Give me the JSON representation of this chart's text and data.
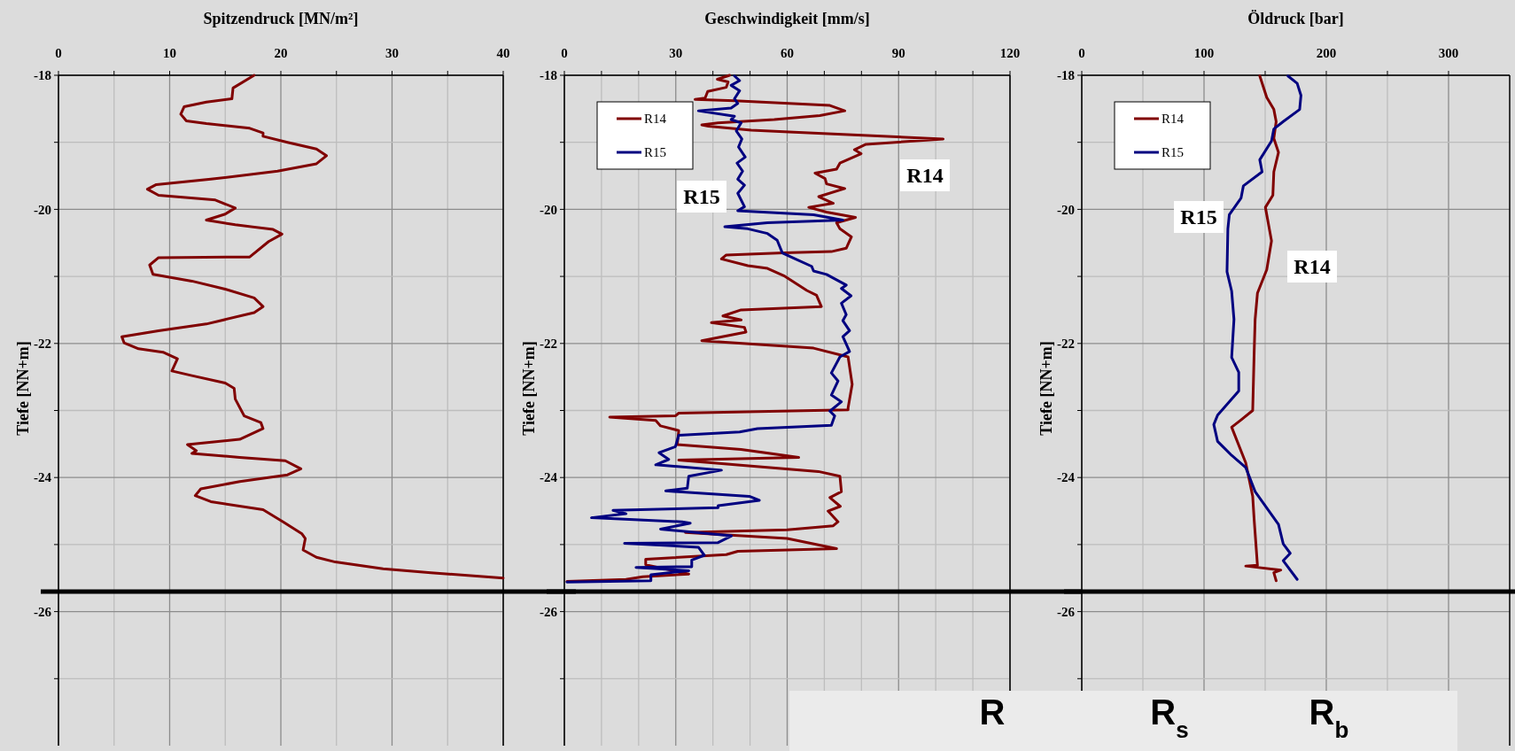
{
  "chart_data": [
    {
      "type": "line",
      "title": "Spitzendruck [MN/m²]",
      "ylabel": "Tiefe [NN+m]",
      "xlim": [
        0,
        40
      ],
      "xticks": [
        0,
        {
          "value": 5,
          "label": null
        },
        10,
        {
          "value": 15,
          "label": null
        },
        20,
        {
          "value": 25,
          "label": null
        },
        30,
        {
          "value": 35,
          "label": null
        },
        40
      ],
      "ylim": [
        -28,
        -18
      ],
      "yticks": [
        -18,
        {
          "value": -19,
          "label": null
        },
        -20,
        {
          "value": -21,
          "label": null
        },
        -22,
        {
          "value": -23,
          "label": null
        },
        -24,
        {
          "value": -25,
          "label": null
        },
        -26,
        {
          "value": -27,
          "label": null
        }
      ],
      "grid": true,
      "ref_lines": [
        {
          "axis": "y",
          "value": -25.7,
          "color": "#000000"
        }
      ],
      "series": [
        {
          "color": "#800000",
          "x": [
            17.6,
            15.7,
            15.6,
            13.3,
            11.3,
            11.0,
            11.5,
            13.3,
            17.2,
            18.4,
            18.4,
            20.6,
            23.2,
            24.1,
            23.2,
            19.7,
            13.7,
            8.8,
            8.0,
            9.0,
            14.1,
            15.9,
            15.0,
            13.3,
            15.9,
            19.3,
            20.1,
            18.9,
            17.2,
            9.0,
            8.2,
            8.5,
            12.0,
            15.0,
            17.6,
            18.4,
            17.6,
            13.3,
            9.0,
            5.7,
            5.9,
            7.2,
            9.4,
            10.7,
            10.2,
            12.0,
            15.0,
            15.8,
            15.9,
            16.7,
            18.2,
            18.4,
            16.3,
            11.6,
            12.4,
            12.0,
            16.3,
            20.4,
            21.8,
            20.6,
            16.3,
            12.8,
            12.3,
            13.7,
            18.4,
            20.2,
            21.9,
            22.2,
            22.0,
            23.2,
            24.9,
            29.2,
            33.5,
            40.0
          ],
          "values": [
            -18.0,
            -18.19,
            -18.35,
            -18.4,
            -18.47,
            -18.58,
            -18.68,
            -18.72,
            -18.79,
            -18.86,
            -18.91,
            -19.0,
            -19.1,
            -19.2,
            -19.32,
            -19.43,
            -19.55,
            -19.63,
            -19.7,
            -19.79,
            -19.86,
            -19.98,
            -20.07,
            -20.16,
            -20.23,
            -20.3,
            -20.37,
            -20.48,
            -20.71,
            -20.72,
            -20.83,
            -20.97,
            -21.07,
            -21.19,
            -21.32,
            -21.45,
            -21.54,
            -21.71,
            -21.81,
            -21.9,
            -21.99,
            -22.08,
            -22.13,
            -22.23,
            -22.41,
            -22.48,
            -22.59,
            -22.67,
            -22.83,
            -23.08,
            -23.18,
            -23.27,
            -23.43,
            -23.51,
            -23.6,
            -23.64,
            -23.7,
            -23.75,
            -23.87,
            -23.96,
            -24.06,
            -24.17,
            -24.27,
            -24.36,
            -24.48,
            -24.66,
            -24.84,
            -24.91,
            -25.08,
            -25.19,
            -25.26,
            -25.36,
            -25.42,
            -25.5
          ]
        }
      ]
    },
    {
      "type": "line",
      "title": "Geschwindigkeit [mm/s]",
      "ylabel": "Tiefe [NN+m]",
      "xlim": [
        0,
        120
      ],
      "xticks": [
        0,
        {
          "value": 10,
          "label": null
        },
        {
          "value": 20,
          "label": null
        },
        30,
        {
          "value": 40,
          "label": null
        },
        {
          "value": 50,
          "label": null
        },
        60,
        {
          "value": 70,
          "label": null
        },
        {
          "value": 80,
          "label": null
        },
        90,
        {
          "value": 100,
          "label": null
        },
        {
          "value": 110,
          "label": null
        },
        120
      ],
      "ylim": [
        -28,
        -18
      ],
      "yticks": [
        -18,
        {
          "value": -19,
          "label": null
        },
        -20,
        {
          "value": -21,
          "label": null
        },
        -22,
        {
          "value": -23,
          "label": null
        },
        -24,
        {
          "value": -25,
          "label": null
        },
        -26,
        {
          "value": -27,
          "label": null
        }
      ],
      "grid": true,
      "legend": "top left",
      "ref_lines": [
        {
          "axis": "y",
          "value": -25.7,
          "color": "#000000"
        }
      ],
      "annotations": [
        "R15",
        "R14"
      ],
      "series": [
        {
          "name": "R14",
          "color": "#800000",
          "x": [
            44.5,
            41.2,
            44.1,
            43.6,
            38.6,
            37.9,
            35.2,
            45.8,
            71.5,
            75.5,
            68.8,
            56.5,
            41.4,
            37.0,
            38.8,
            50.3,
            61.8,
            102.0,
            81.2,
            78.1,
            79.9,
            74.2,
            73.3,
            67.5,
            70.2,
            70.6,
            75.5,
            68.5,
            72.4,
            65.8,
            70.6,
            78.4,
            73.3,
            74.2,
            77.3,
            75.9,
            71.9,
            59.1,
            43.6,
            42.3,
            49.4,
            54.7,
            59.1,
            65.3,
            67.9,
            69.2,
            47.6,
            42.7,
            47.6,
            39.6,
            48.5,
            48.9,
            37.0,
            67.1,
            76.4,
            77.5,
            76.4,
            76.4,
            30.8,
            29.9,
            12.2,
            24.6,
            25.9,
            30.8,
            30.4,
            47.6,
            63.1,
            30.8,
            68.4,
            74.2,
            74.6,
            71.5,
            74.3,
            71.0,
            73.7,
            72.4,
            60.0,
            32.6,
            60.0,
            73.3,
            46.7,
            43.6,
            21.9,
            21.9,
            33.5,
            21.1,
            16.6,
            0.7
          ],
          "values": [
            -18.0,
            -18.06,
            -18.1,
            -18.18,
            -18.24,
            -18.34,
            -18.36,
            -18.38,
            -18.45,
            -18.53,
            -18.6,
            -18.66,
            -18.71,
            -18.74,
            -18.76,
            -18.82,
            -18.85,
            -18.95,
            -19.03,
            -19.11,
            -19.17,
            -19.31,
            -19.4,
            -19.46,
            -19.54,
            -19.62,
            -19.69,
            -19.81,
            -19.91,
            -19.97,
            -20.04,
            -20.12,
            -20.2,
            -20.29,
            -20.41,
            -20.58,
            -20.63,
            -20.65,
            -20.68,
            -20.74,
            -20.84,
            -20.88,
            -20.99,
            -21.21,
            -21.28,
            -21.45,
            -21.5,
            -21.59,
            -21.65,
            -21.69,
            -21.76,
            -21.83,
            -21.96,
            -22.07,
            -22.2,
            -22.61,
            -22.96,
            -22.99,
            -23.04,
            -23.08,
            -23.1,
            -23.15,
            -23.23,
            -23.3,
            -23.51,
            -23.58,
            -23.7,
            -23.74,
            -23.91,
            -23.98,
            -24.21,
            -24.3,
            -24.43,
            -24.5,
            -24.66,
            -24.72,
            -24.78,
            -24.82,
            -24.91,
            -25.06,
            -25.1,
            -25.15,
            -25.22,
            -25.3,
            -25.44,
            -25.48,
            -25.52,
            -25.55
          ]
        },
        {
          "name": "R15",
          "color": "#000080",
          "x": [
            45.8,
            47.2,
            44.9,
            47.2,
            45.8,
            46.7,
            44.9,
            36.1,
            45.8,
            44.9,
            47.6,
            46.3,
            47.8,
            46.9,
            48.7,
            46.5,
            48.0,
            46.7,
            48.5,
            46.7,
            48.5,
            46.7,
            67.1,
            75.0,
            54.7,
            43.2,
            49.4,
            54.7,
            57.3,
            58.7,
            61.8,
            66.6,
            67.1,
            70.6,
            75.9,
            74.6,
            77.2,
            74.6,
            75.9,
            75.0,
            76.8,
            75.0,
            76.8,
            74.2,
            71.9,
            73.7,
            71.9,
            74.6,
            71.5,
            72.8,
            71.9,
            52.0,
            47.2,
            30.8,
            29.9,
            25.5,
            28.1,
            24.6,
            42.3,
            33.5,
            33.1,
            27.3,
            49.8,
            52.5,
            41.4,
            41.4,
            13.1,
            16.6,
            7.3,
            31.7,
            33.9,
            25.9,
            45.0,
            41.4,
            16.2,
            36.1,
            37.7,
            34.3,
            34.3,
            19.3,
            33.5,
            23.3,
            23.3,
            0.7
          ],
          "values": [
            -18.01,
            -18.08,
            -18.15,
            -18.23,
            -18.35,
            -18.42,
            -18.49,
            -18.53,
            -18.61,
            -18.66,
            -18.71,
            -18.83,
            -18.95,
            -19.07,
            -19.22,
            -19.31,
            -19.43,
            -19.55,
            -19.64,
            -19.76,
            -19.96,
            -20.02,
            -20.08,
            -20.16,
            -20.2,
            -20.26,
            -20.29,
            -20.36,
            -20.46,
            -20.65,
            -20.73,
            -20.85,
            -20.92,
            -20.97,
            -21.13,
            -21.18,
            -21.29,
            -21.4,
            -21.57,
            -21.66,
            -21.81,
            -21.9,
            -22.12,
            -22.2,
            -22.44,
            -22.56,
            -22.77,
            -22.87,
            -23.01,
            -23.08,
            -23.22,
            -23.27,
            -23.32,
            -23.37,
            -23.54,
            -23.63,
            -23.73,
            -23.81,
            -23.89,
            -23.98,
            -24.16,
            -24.2,
            -24.28,
            -24.34,
            -24.42,
            -24.45,
            -24.49,
            -24.54,
            -24.6,
            -24.66,
            -24.68,
            -24.77,
            -24.87,
            -24.97,
            -24.98,
            -25.04,
            -25.16,
            -25.23,
            -25.33,
            -25.34,
            -25.39,
            -25.45,
            -25.54,
            -25.56
          ]
        }
      ]
    },
    {
      "type": "line",
      "title": "Öldruck [bar]",
      "ylabel": "Tiefe [NN+m]",
      "xlim": [
        0,
        350
      ],
      "xticks": [
        0,
        {
          "value": 50,
          "label": null
        },
        100,
        {
          "value": 150,
          "label": null
        },
        200,
        {
          "value": 250,
          "label": null
        },
        300
      ],
      "ylim": [
        -28,
        -18
      ],
      "yticks": [
        -18,
        {
          "value": -19,
          "label": null
        },
        -20,
        {
          "value": -21,
          "label": null
        },
        -22,
        {
          "value": -23,
          "label": null
        },
        -24,
        {
          "value": -25,
          "label": null
        },
        -26,
        {
          "value": -27,
          "label": null
        }
      ],
      "grid": true,
      "legend": "top left",
      "ref_lines": [
        {
          "axis": "y",
          "value": -25.7,
          "color": "#000000"
        }
      ],
      "annotations": [
        "R15",
        "R14",
        "R",
        "R$_{s}$",
        "R$_{b}$"
      ],
      "series": [
        {
          "name": "R14",
          "color": "#800000",
          "x": [
            145.6,
            151.3,
            157.1,
            159.0,
            157.1,
            160.9,
            157.1,
            156.3,
            150.2,
            155.2,
            151.3,
            143.7,
            141.8,
            141.0,
            139.8,
            130.3,
            122.6,
            134.1,
            139.8,
            141.0,
            143.7,
            134.1,
            162.8,
            157.1,
            159.0
          ],
          "values": [
            -18.01,
            -18.33,
            -18.51,
            -18.69,
            -18.94,
            -19.15,
            -19.44,
            -19.79,
            -19.97,
            -20.47,
            -20.9,
            -21.25,
            -21.64,
            -22.14,
            -23.0,
            -23.14,
            -23.25,
            -23.78,
            -24.28,
            -24.63,
            -25.31,
            -25.32,
            -25.38,
            -25.42,
            -25.54
          ]
        },
        {
          "name": "R15",
          "color": "#000080",
          "x": [
            168.6,
            176.2,
            179.3,
            178.2,
            164.8,
            157.1,
            155.2,
            145.6,
            147.5,
            132.2,
            130.3,
            120.7,
            119.5,
            118.8,
            122.6,
            124.5,
            122.6,
            128.4,
            128.4,
            111.1,
            108.0,
            111.1,
            122.6,
            134.1,
            141.8,
            160.9,
            164.8,
            170.5,
            164.8,
            176.2
          ],
          "values": [
            -18.01,
            -18.12,
            -18.3,
            -18.51,
            -18.69,
            -18.8,
            -18.98,
            -19.26,
            -19.44,
            -19.65,
            -19.83,
            -20.08,
            -20.29,
            -20.93,
            -21.22,
            -21.64,
            -22.21,
            -22.43,
            -22.71,
            -23.07,
            -23.21,
            -23.46,
            -23.67,
            -23.85,
            -24.21,
            -24.7,
            -24.99,
            -25.13,
            -25.24,
            -25.52
          ]
        }
      ]
    }
  ]
}
